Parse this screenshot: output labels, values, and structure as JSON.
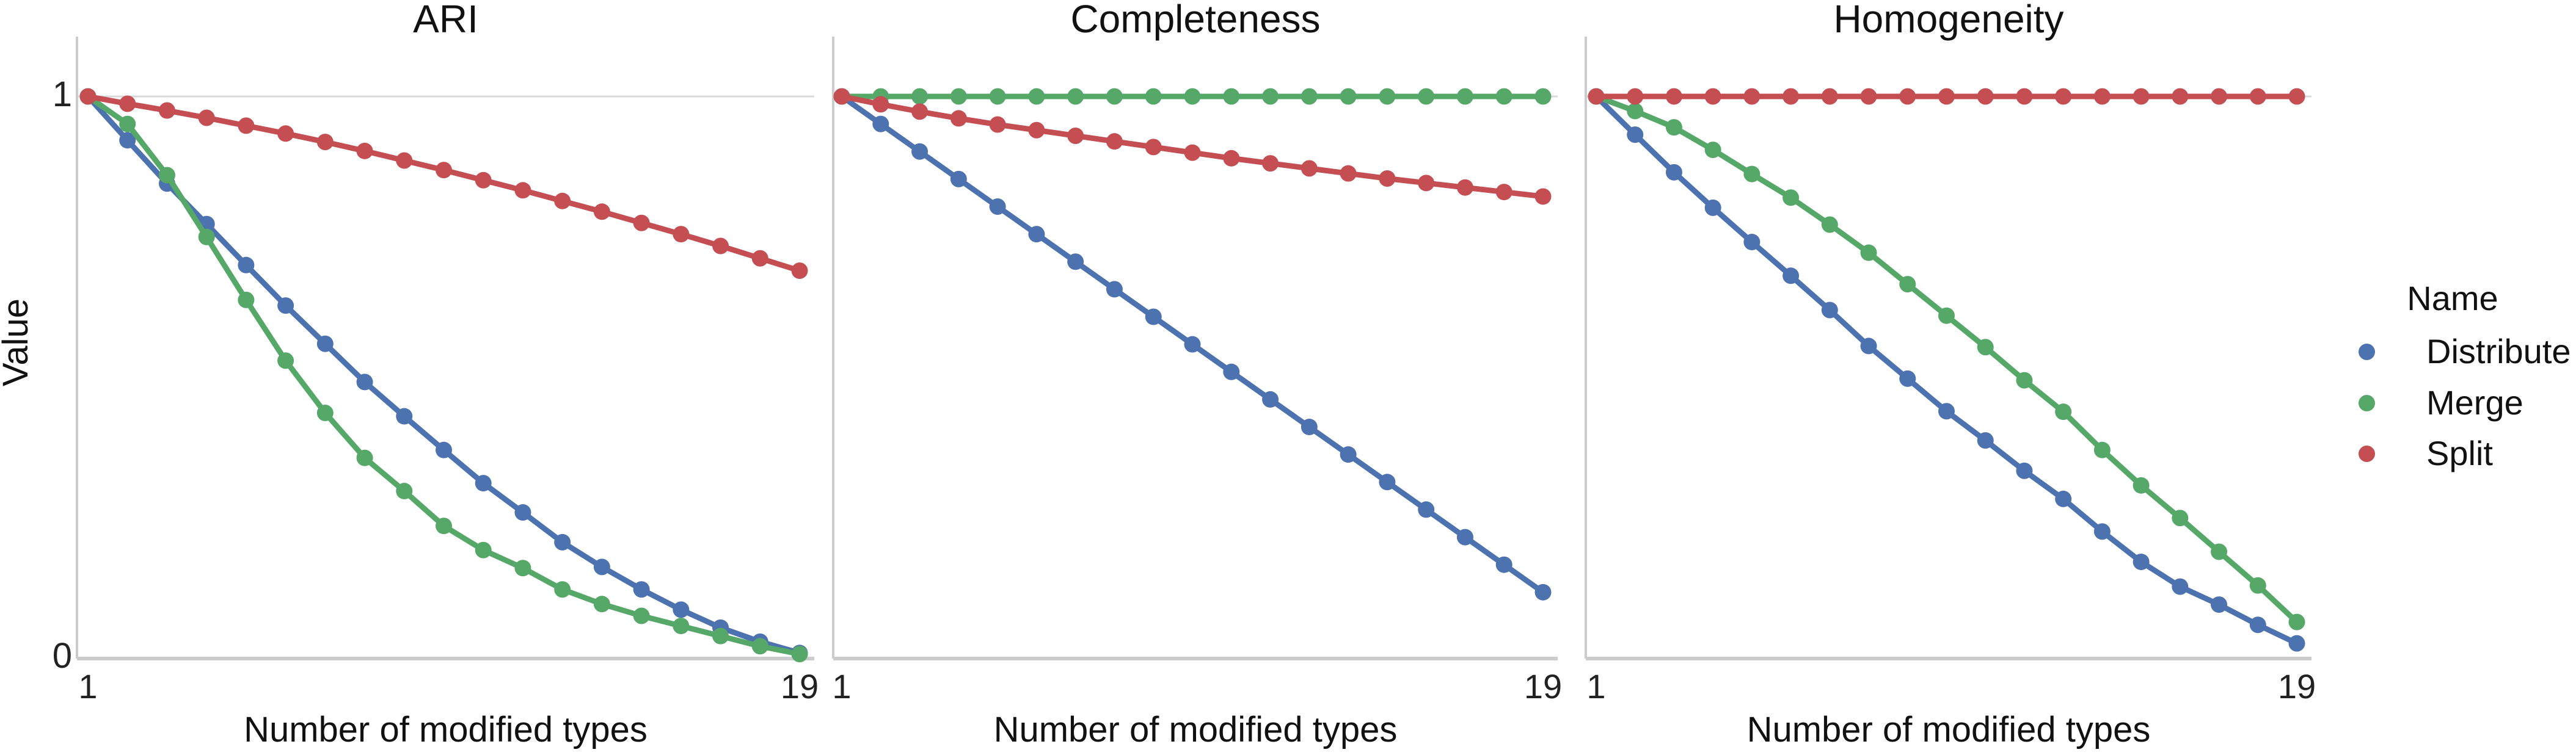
{
  "figure": {
    "ylabel": "Value",
    "xlabel": "Number of modified types",
    "x_ticks": [
      "1",
      "19"
    ],
    "y_ticks": [
      "0",
      "1"
    ],
    "background": "#ffffff",
    "grid_color": "#d9d9d9",
    "axis_color": "#cccccc",
    "text_color": "#1a1a1a"
  },
  "legend": {
    "title": "Name",
    "position": "right",
    "items": [
      {
        "label": "Distribute",
        "color": "#4c72b0"
      },
      {
        "label": "Merge",
        "color": "#55a868"
      },
      {
        "label": "Split",
        "color": "#c44e52"
      }
    ]
  },
  "chart_data": [
    {
      "type": "line",
      "title": "ARI",
      "xlabel": "Number of modified types",
      "ylabel": "Value",
      "x_range": [
        1,
        19
      ],
      "y_range": [
        0,
        1
      ],
      "x_tick_labels": [
        "1",
        "19"
      ],
      "y_tick_labels": [
        "0",
        "1"
      ],
      "grid": "horizontal line at y=1 only",
      "x": [
        1,
        2,
        3,
        4,
        5,
        6,
        7,
        8,
        9,
        10,
        11,
        12,
        13,
        14,
        15,
        16,
        17,
        18,
        19
      ],
      "series": [
        {
          "name": "Distribute",
          "color": "#4c72b0",
          "values": [
            1.0,
            0.922,
            0.845,
            0.773,
            0.7,
            0.628,
            0.56,
            0.492,
            0.431,
            0.371,
            0.312,
            0.26,
            0.207,
            0.163,
            0.123,
            0.087,
            0.055,
            0.03,
            0.01
          ]
        },
        {
          "name": "Merge",
          "color": "#55a868",
          "values": [
            1.0,
            0.951,
            0.86,
            0.75,
            0.638,
            0.53,
            0.437,
            0.357,
            0.298,
            0.236,
            0.193,
            0.161,
            0.123,
            0.097,
            0.076,
            0.058,
            0.04,
            0.022,
            0.008
          ]
        },
        {
          "name": "Split",
          "color": "#c44e52",
          "values": [
            1.0,
            0.987,
            0.975,
            0.962,
            0.948,
            0.934,
            0.919,
            0.903,
            0.886,
            0.869,
            0.851,
            0.833,
            0.814,
            0.795,
            0.775,
            0.755,
            0.734,
            0.712,
            0.69
          ]
        }
      ]
    },
    {
      "type": "line",
      "title": "Completeness",
      "xlabel": "Number of modified types",
      "ylabel": "Value",
      "x_range": [
        1,
        19
      ],
      "y_range": [
        0,
        1
      ],
      "x_tick_labels": [
        "1",
        "19"
      ],
      "y_tick_labels": [
        "0",
        "1"
      ],
      "grid": "horizontal line at y=1 only",
      "x": [
        1,
        2,
        3,
        4,
        5,
        6,
        7,
        8,
        9,
        10,
        11,
        12,
        13,
        14,
        15,
        16,
        17,
        18,
        19
      ],
      "series": [
        {
          "name": "Distribute",
          "color": "#4c72b0",
          "values": [
            1.0,
            0.951,
            0.902,
            0.853,
            0.804,
            0.755,
            0.706,
            0.657,
            0.608,
            0.559,
            0.51,
            0.461,
            0.412,
            0.363,
            0.314,
            0.265,
            0.216,
            0.167,
            0.118
          ]
        },
        {
          "name": "Merge",
          "color": "#55a868",
          "values": [
            1.0,
            1.0,
            1.0,
            1.0,
            1.0,
            1.0,
            1.0,
            1.0,
            1.0,
            1.0,
            1.0,
            1.0,
            1.0,
            1.0,
            1.0,
            1.0,
            1.0,
            1.0,
            1.0
          ]
        },
        {
          "name": "Split",
          "color": "#c44e52",
          "values": [
            1.0,
            0.986,
            0.973,
            0.961,
            0.95,
            0.94,
            0.93,
            0.92,
            0.91,
            0.9,
            0.89,
            0.881,
            0.872,
            0.863,
            0.854,
            0.846,
            0.838,
            0.83,
            0.822
          ]
        }
      ]
    },
    {
      "type": "line",
      "title": "Homogeneity",
      "xlabel": "Number of modified types",
      "ylabel": "Value",
      "x_range": [
        1,
        19
      ],
      "y_range": [
        0,
        1
      ],
      "x_tick_labels": [
        "1",
        "19"
      ],
      "y_tick_labels": [
        "0",
        "1"
      ],
      "grid": "horizontal line at y=1 only",
      "x": [
        1,
        2,
        3,
        4,
        5,
        6,
        7,
        8,
        9,
        10,
        11,
        12,
        13,
        14,
        15,
        16,
        17,
        18,
        19
      ],
      "series": [
        {
          "name": "Distribute",
          "color": "#4c72b0",
          "values": [
            1.0,
            0.932,
            0.865,
            0.802,
            0.741,
            0.681,
            0.62,
            0.556,
            0.498,
            0.44,
            0.388,
            0.334,
            0.284,
            0.226,
            0.172,
            0.128,
            0.096,
            0.06,
            0.027
          ]
        },
        {
          "name": "Merge",
          "color": "#55a868",
          "values": [
            1.0,
            0.974,
            0.945,
            0.905,
            0.862,
            0.82,
            0.772,
            0.722,
            0.666,
            0.61,
            0.554,
            0.495,
            0.439,
            0.371,
            0.308,
            0.25,
            0.19,
            0.13,
            0.065
          ]
        },
        {
          "name": "Split",
          "color": "#c44e52",
          "values": [
            1.0,
            1.0,
            1.0,
            1.0,
            1.0,
            1.0,
            1.0,
            1.0,
            1.0,
            1.0,
            1.0,
            1.0,
            1.0,
            1.0,
            1.0,
            1.0,
            1.0,
            1.0,
            1.0
          ]
        }
      ]
    }
  ]
}
